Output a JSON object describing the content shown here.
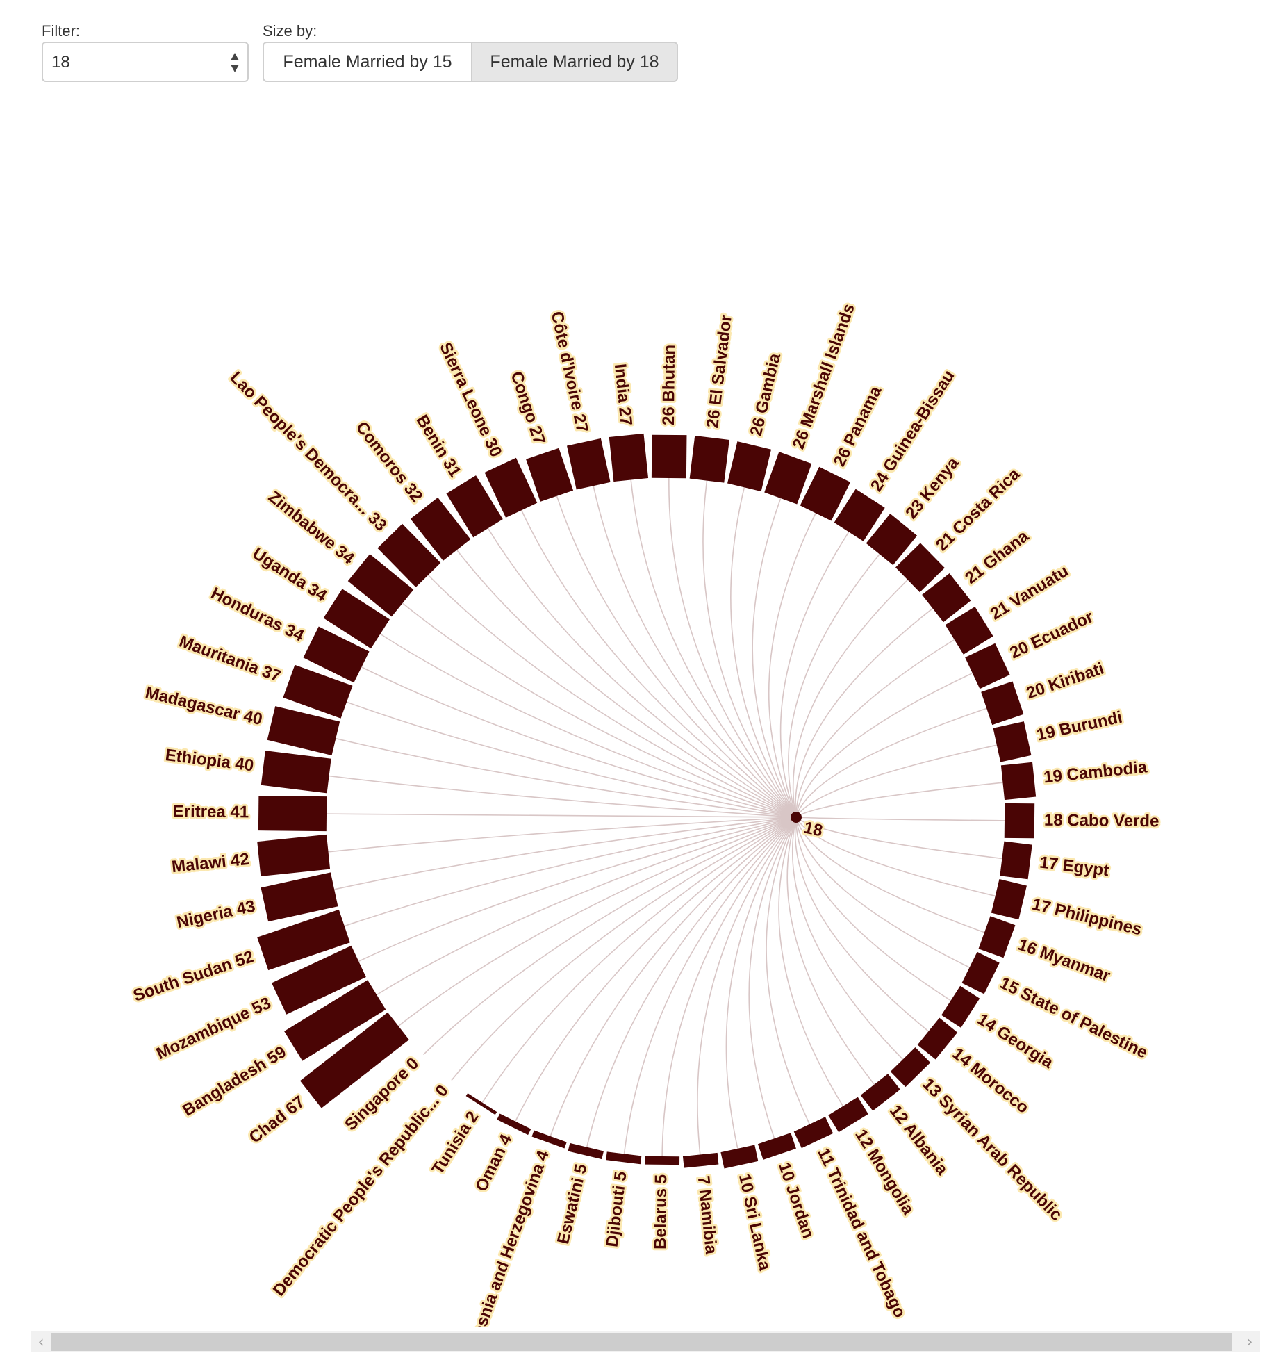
{
  "controls": {
    "filter_label": "Filter:",
    "filter_value": "18",
    "sizeby_label": "Size by:",
    "sizeby_options": [
      "Female Married by 15",
      "Female Married by 18"
    ],
    "sizeby_selected": "Female Married by 18"
  },
  "chart_data": {
    "type": "radial-bar",
    "center_label": "18",
    "bar_color": "#4a0505",
    "link_color": "#d8c6c6",
    "label_halo_color": "#fbe8b0",
    "series_name": "Female Married by 18",
    "points": [
      {
        "country": "Chad",
        "value": 67
      },
      {
        "country": "Bangladesh",
        "value": 59
      },
      {
        "country": "Mozambique",
        "value": 53
      },
      {
        "country": "South Sudan",
        "value": 52
      },
      {
        "country": "Nigeria",
        "value": 43
      },
      {
        "country": "Malawi",
        "value": 42
      },
      {
        "country": "Eritrea",
        "value": 41
      },
      {
        "country": "Ethiopia",
        "value": 40
      },
      {
        "country": "Madagascar",
        "value": 40
      },
      {
        "country": "Mauritania",
        "value": 37
      },
      {
        "country": "Honduras",
        "value": 34
      },
      {
        "country": "Uganda",
        "value": 34
      },
      {
        "country": "Zimbabwe",
        "value": 34
      },
      {
        "country": "Lao People's Democra...",
        "value": 33
      },
      {
        "country": "Comoros",
        "value": 32
      },
      {
        "country": "Benin",
        "value": 31
      },
      {
        "country": "Sierra Leone",
        "value": 30
      },
      {
        "country": "Congo",
        "value": 27
      },
      {
        "country": "Côte d'Ivoire",
        "value": 27
      },
      {
        "country": "India",
        "value": 27
      },
      {
        "country": "Bhutan",
        "value": 26
      },
      {
        "country": "El Salvador",
        "value": 26
      },
      {
        "country": "Gambia",
        "value": 26
      },
      {
        "country": "Marshall Islands",
        "value": 26
      },
      {
        "country": "Panama",
        "value": 26
      },
      {
        "country": "Guinea-Bissau",
        "value": 24
      },
      {
        "country": "Kenya",
        "value": 23
      },
      {
        "country": "Costa Rica",
        "value": 21
      },
      {
        "country": "Ghana",
        "value": 21
      },
      {
        "country": "Vanuatu",
        "value": 21
      },
      {
        "country": "Ecuador",
        "value": 20
      },
      {
        "country": "Kiribati",
        "value": 20
      },
      {
        "country": "Burundi",
        "value": 19
      },
      {
        "country": "Cambodia",
        "value": 19
      },
      {
        "country": "Cabo Verde",
        "value": 18
      },
      {
        "country": "Egypt",
        "value": 17
      },
      {
        "country": "Philippines",
        "value": 17
      },
      {
        "country": "Myanmar",
        "value": 16
      },
      {
        "country": "State of Palestine",
        "value": 15
      },
      {
        "country": "Georgia",
        "value": 14
      },
      {
        "country": "Morocco",
        "value": 14
      },
      {
        "country": "Syrian Arab Republic",
        "value": 13
      },
      {
        "country": "Albania",
        "value": 12
      },
      {
        "country": "Mongolia",
        "value": 12
      },
      {
        "country": "Trinidad and Tobago",
        "value": 11
      },
      {
        "country": "Jordan",
        "value": 10
      },
      {
        "country": "Sri Lanka",
        "value": 10
      },
      {
        "country": "Namibia",
        "value": 7
      },
      {
        "country": "Belarus",
        "value": 5
      },
      {
        "country": "Djibouti",
        "value": 5
      },
      {
        "country": "Eswatini",
        "value": 5
      },
      {
        "country": "Bosnia and Herzegovina",
        "value": 4
      },
      {
        "country": "Oman",
        "value": 4
      },
      {
        "country": "Tunisia",
        "value": 2
      },
      {
        "country": "Democratic People's Republic...",
        "value": 0
      },
      {
        "country": "Singapore",
        "value": 0
      }
    ]
  },
  "scrollbar": {
    "left_icon": "chevron-left-icon",
    "right_icon": "chevron-right-icon"
  }
}
